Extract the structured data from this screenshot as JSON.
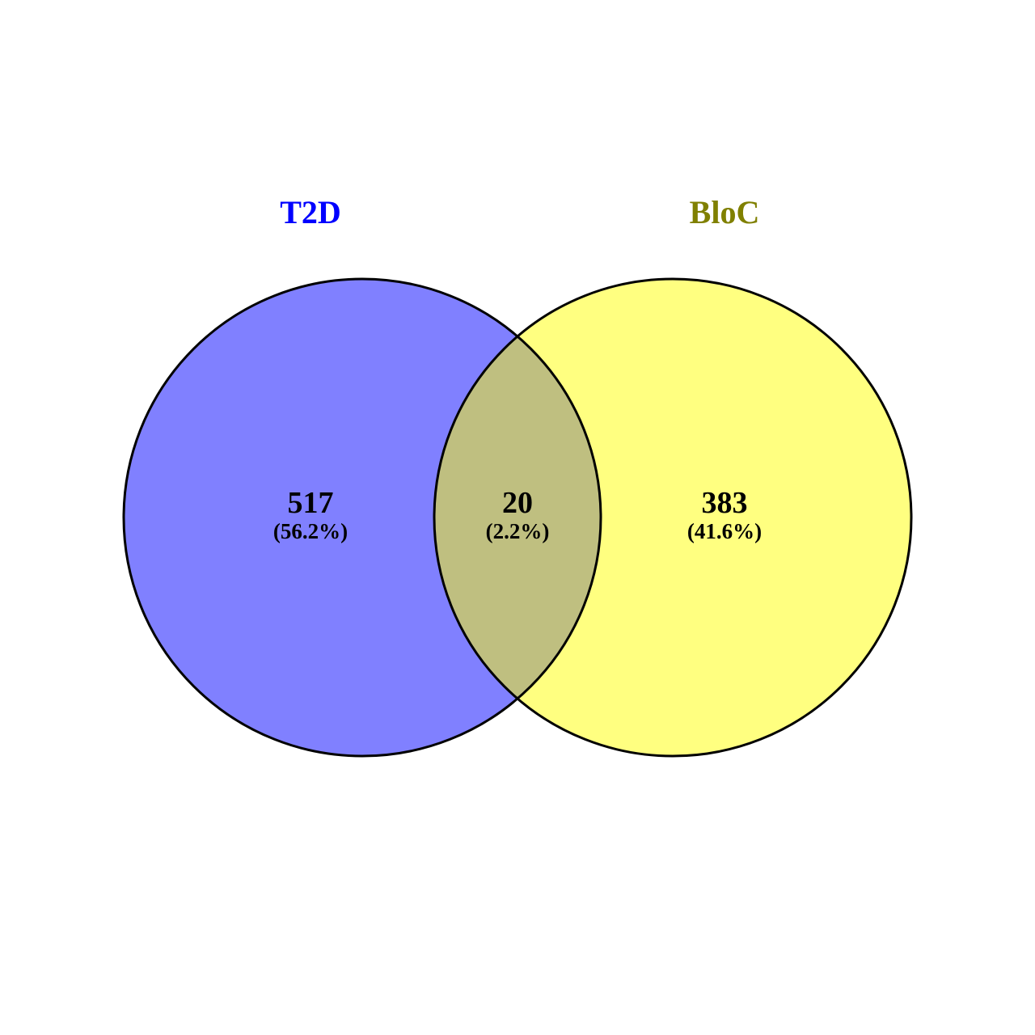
{
  "sets": [
    {
      "label": "T2D",
      "fill_color": "#8080ff",
      "label_color": "#0000ff"
    },
    {
      "label": "BloC",
      "fill_color": "#ffff80",
      "label_color": "#808000"
    }
  ],
  "overlap_color": "#bfbf80",
  "outline_color": "#000000",
  "regions": {
    "left_only": {
      "count": "517",
      "percent": "(56.2%)"
    },
    "intersection": {
      "count": "20",
      "percent": "(2.2%)"
    },
    "right_only": {
      "count": "383",
      "percent": "(41.6%)"
    }
  }
}
